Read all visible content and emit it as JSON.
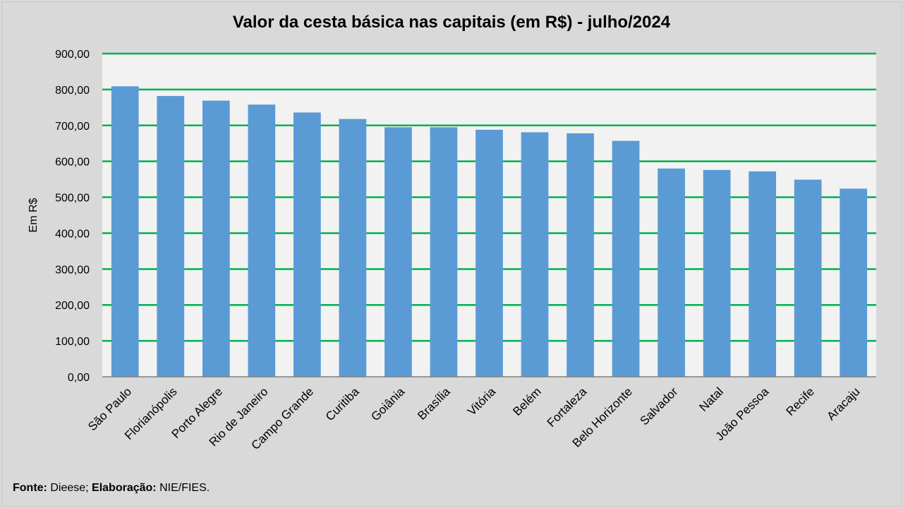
{
  "source": {
    "fonte_label": "Fonte:",
    "fonte_value": "Dieese;",
    "elab_label": "Elaboração:",
    "elab_value": "NIE/FIES."
  },
  "chart_data": {
    "type": "bar",
    "title": "Valor da cesta básica nas capitais (em R$) - julho/2024",
    "xlabel": "",
    "ylabel": "Em R$",
    "ylim": [
      0,
      900
    ],
    "yticks": [
      0,
      100,
      200,
      300,
      400,
      500,
      600,
      700,
      800,
      900
    ],
    "ytick_labels": [
      "0,00",
      "100,00",
      "200,00",
      "300,00",
      "400,00",
      "500,00",
      "600,00",
      "700,00",
      "800,00",
      "900,00"
    ],
    "grid": true,
    "bar_color": "#5b9bd5",
    "grid_color": "#00b050",
    "plot_bg": "#f2f2f2",
    "categories": [
      "São Paulo",
      "Florianópolis",
      "Porto Alegre",
      "Rio de Janeiro",
      "Campo Grande",
      "Curitiba",
      "Goiânia",
      "Brasília",
      "Vitória",
      "Belém",
      "Fortaleza",
      "Belo Horizonte",
      "Salvador",
      "Natal",
      "João Pessoa",
      "Recife",
      "Aracaju"
    ],
    "values": [
      809,
      782,
      769,
      758,
      736,
      718,
      695,
      695,
      688,
      681,
      678,
      657,
      580,
      576,
      572,
      549,
      524
    ]
  }
}
